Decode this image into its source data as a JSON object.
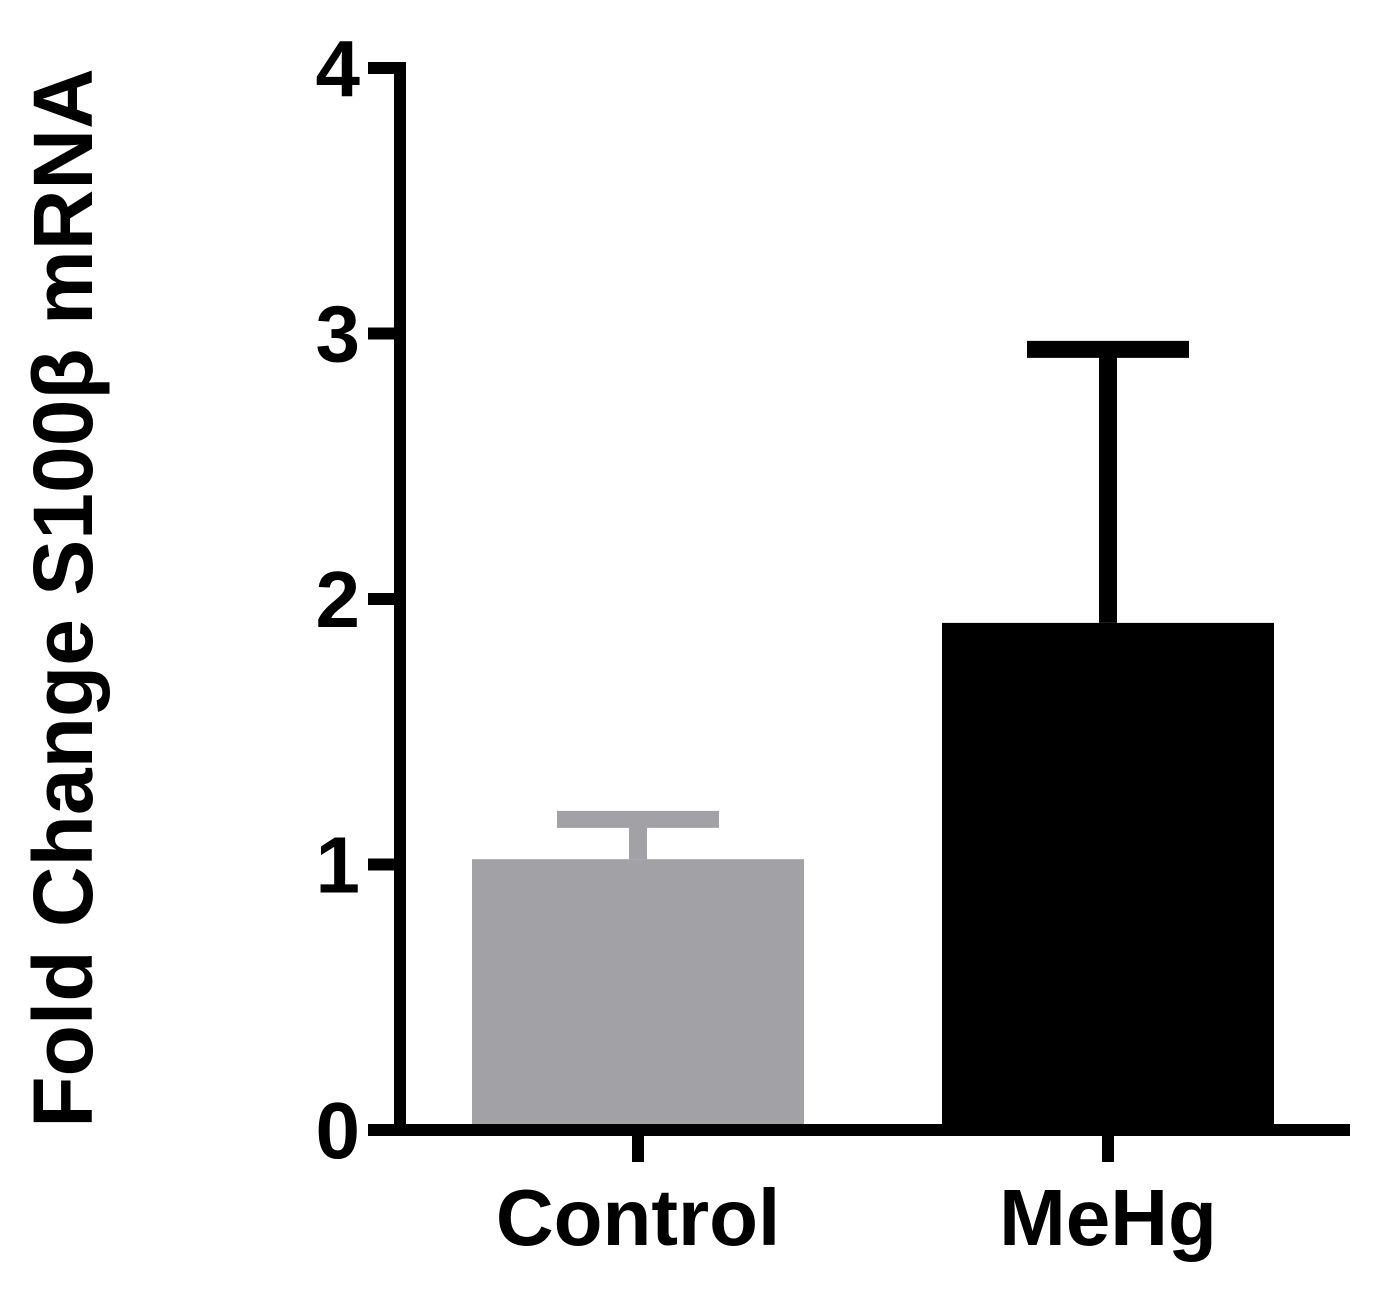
{
  "chart_data": {
    "type": "bar",
    "title": "",
    "xlabel": "",
    "ylabel": "Fold Change S100β mRNA",
    "categories": [
      "Control",
      "MeHg"
    ],
    "values": [
      1.02,
      1.91
    ],
    "error_upper": [
      0.15,
      1.03
    ],
    "ylim": [
      0,
      4
    ],
    "yticks": [
      "0",
      "1",
      "2",
      "3",
      "4"
    ],
    "grid": false,
    "legend": "none",
    "colors": [
      "#a2a1a5",
      "#000000"
    ]
  }
}
